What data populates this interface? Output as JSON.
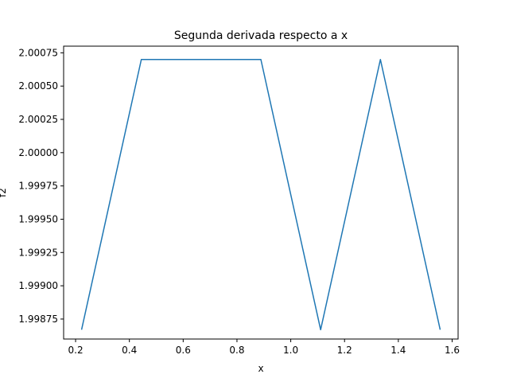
{
  "chart_data": {
    "type": "line",
    "title": "Segunda derivada respecto a x",
    "xlabel": "x",
    "ylabel": "f2",
    "xlim": [
      0.1555,
      1.6222
    ],
    "ylim": [
      1.9986,
      2.0008
    ],
    "x_ticks": [
      {
        "value": 0.2,
        "label": "0.2"
      },
      {
        "value": 0.4,
        "label": "0.4"
      },
      {
        "value": 0.6,
        "label": "0.6"
      },
      {
        "value": 0.8,
        "label": "0.8"
      },
      {
        "value": 1.0,
        "label": "1.0"
      },
      {
        "value": 1.2,
        "label": "1.2"
      },
      {
        "value": 1.4,
        "label": "1.4"
      },
      {
        "value": 1.6,
        "label": "1.6"
      }
    ],
    "y_ticks": [
      {
        "value": 1.99875,
        "label": "1.99875"
      },
      {
        "value": 1.999,
        "label": "1.99900"
      },
      {
        "value": 1.99925,
        "label": "1.99925"
      },
      {
        "value": 1.9995,
        "label": "1.99950"
      },
      {
        "value": 1.99975,
        "label": "1.99975"
      },
      {
        "value": 2.0,
        "label": "2.00000"
      },
      {
        "value": 2.00025,
        "label": "2.00025"
      },
      {
        "value": 2.0005,
        "label": "2.00050"
      },
      {
        "value": 2.00075,
        "label": "2.00075"
      }
    ],
    "grid": false,
    "series": [
      {
        "color": "#1f77b4",
        "x": [
          0.2222,
          0.4444,
          0.6667,
          0.8889,
          1.1111,
          1.3333,
          1.5556
        ],
        "y": [
          1.99867,
          2.0007,
          2.0007,
          2.0007,
          1.99867,
          2.0007,
          1.99867
        ]
      }
    ]
  }
}
